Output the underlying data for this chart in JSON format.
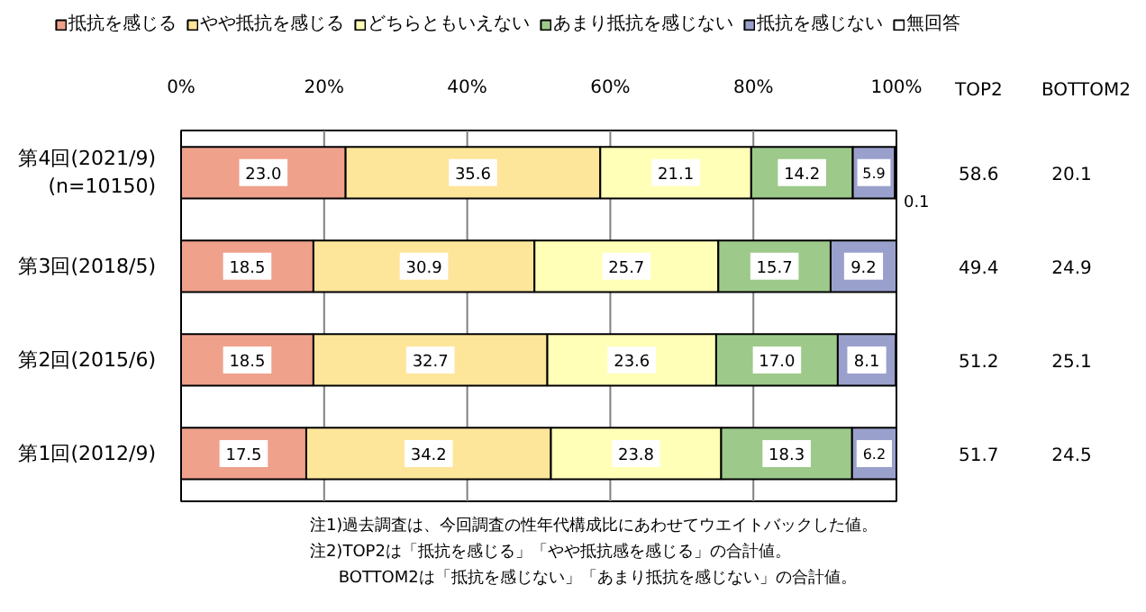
{
  "chart_data": {
    "type": "bar",
    "orientation": "horizontal",
    "stacked": true,
    "categories": [
      "第4回(2021/9)\n(n=10150)",
      "第3回(2018/5)",
      "第2回(2015/6)",
      "第1回(2012/9)"
    ],
    "series": [
      {
        "name": "抵抗を感じる",
        "color": "#efa18c",
        "values": [
          23.0,
          18.5,
          18.5,
          17.5
        ],
        "value_labels": [
          "23.0",
          "18.5",
          "18.5",
          "17.5"
        ]
      },
      {
        "name": "やや抵抗を感じる",
        "color": "#fde59a",
        "values": [
          35.6,
          30.9,
          32.7,
          34.2
        ],
        "value_labels": [
          "35.6",
          "30.9",
          "32.7",
          "34.2"
        ]
      },
      {
        "name": "どちらともいえない",
        "color": "#ffffb8",
        "values": [
          21.1,
          25.7,
          23.6,
          23.8
        ],
        "value_labels": [
          "21.1",
          "25.7",
          "23.6",
          "23.8"
        ]
      },
      {
        "name": "あまり抵抗を感じない",
        "color": "#9dc98a",
        "values": [
          14.2,
          15.7,
          17.0,
          18.3
        ],
        "value_labels": [
          "14.2",
          "15.7",
          "17.0",
          "18.3"
        ]
      },
      {
        "name": "抵抗を感じない",
        "color": "#9aa0cc",
        "values": [
          5.9,
          9.2,
          8.1,
          6.2
        ],
        "value_labels": [
          "5.9",
          "9.2",
          "8.1",
          "6.2"
        ]
      },
      {
        "name": "無回答",
        "color": "#ffffff",
        "values": [
          0.1,
          null,
          null,
          null
        ],
        "value_labels": [
          "0.1",
          null,
          null,
          null
        ]
      }
    ],
    "xlim": [
      0,
      100
    ],
    "xticks": [
      {
        "value": 0,
        "label": "0%"
      },
      {
        "value": 20,
        "label": "20%"
      },
      {
        "value": 40,
        "label": "40%"
      },
      {
        "value": 60,
        "label": "60%"
      },
      {
        "value": 80,
        "label": "80%"
      },
      {
        "value": 100,
        "label": "100%"
      }
    ],
    "grid": "x",
    "legend": "top",
    "annotations": [
      "TOP2",
      "BOTTOM2",
      "58.6",
      "20.1",
      "49.4",
      "24.9",
      "51.2",
      "25.1",
      "51.7",
      "24.5",
      "注1)過去調査は、今回調査の性年代構成比にあわせてウエイトバックした値。",
      "注2)TOP2は「抵抗を感じる」「やや抵抗感を感じる」の合計値。",
      "BOTTOM2は「抵抗を感じない」「あまり抵抗を感じない」の合計値。"
    ]
  }
}
